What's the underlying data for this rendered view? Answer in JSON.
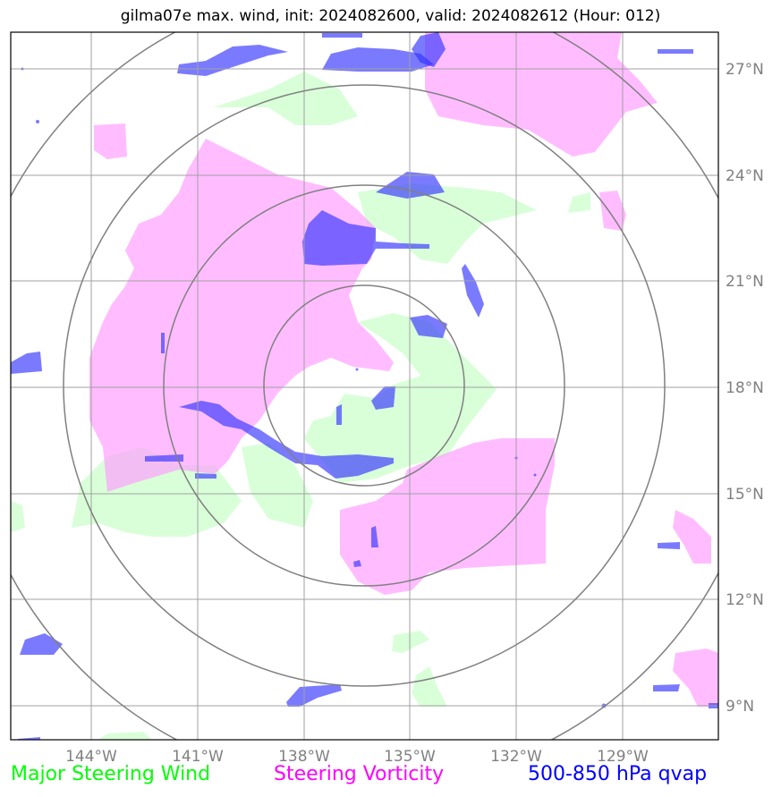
{
  "title": "gilma07e max. wind, init: 2024082600, valid: 2024082612 (Hour: 012)",
  "map": {
    "lon_ticks": [
      "144°W",
      "141°W",
      "138°W",
      "135°W",
      "132°W",
      "129°W"
    ],
    "lat_ticks": [
      "27°N",
      "24°N",
      "21°N",
      "18°N",
      "15°N",
      "12°N",
      "9°N"
    ],
    "range_rings_count": 4,
    "colors": {
      "steering_wind": "#ccffcc",
      "steering_vorticity": "#ff99ff",
      "qvap": "#3333ff",
      "grid": "#a0a0a0",
      "rings": "#808080"
    }
  },
  "legend": {
    "wind": {
      "label": "Major Steering Wind",
      "color": "#00ff00"
    },
    "vorticity": {
      "label": "Steering Vorticity",
      "color": "#ff00ff"
    },
    "qvap": {
      "label": "500-850 hPa qvap",
      "color": "#0000ff"
    }
  }
}
